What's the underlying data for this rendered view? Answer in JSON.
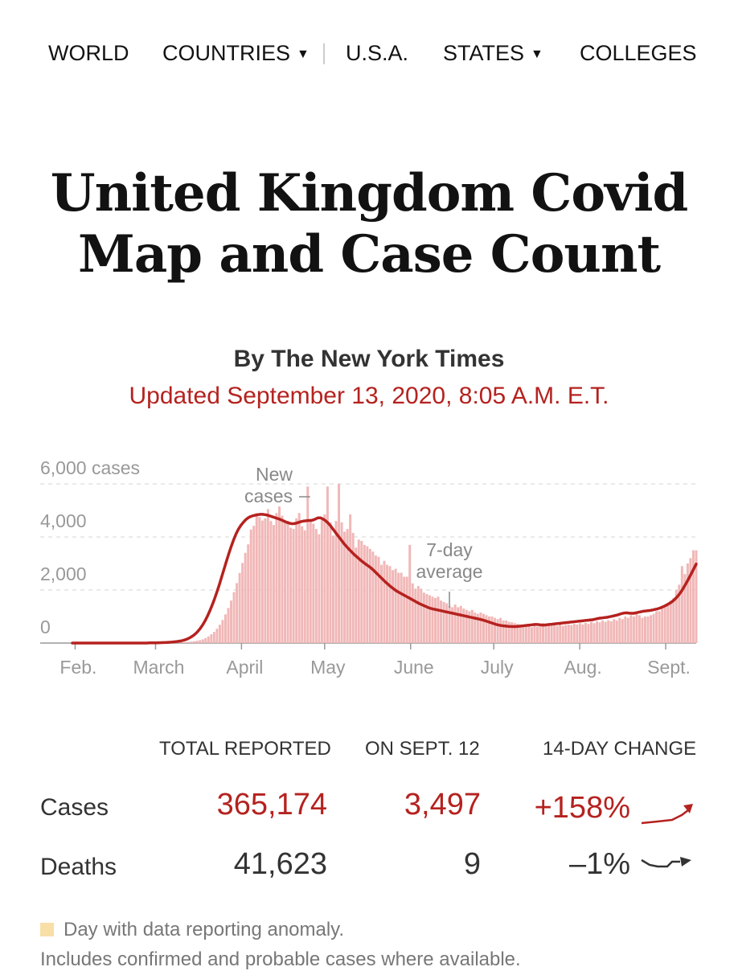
{
  "nav": {
    "items": [
      {
        "label": "WORLD",
        "has_caret": false
      },
      {
        "label": "COUNTRIES",
        "has_caret": true
      },
      {
        "label": "U.S.A.",
        "has_caret": false
      },
      {
        "label": "STATES",
        "has_caret": true
      },
      {
        "label": "COLLEGES",
        "has_caret": false
      }
    ],
    "caret_icon": "caret-down-icon"
  },
  "header": {
    "title": "United Kingdom Covid Map and Case Count",
    "byline": "By The New York Times",
    "updated": "Updated September 13, 2020, 8:05 A.M. E.T."
  },
  "chart_data": {
    "type": "bar",
    "title": "",
    "x_axis": {
      "type": "date",
      "range": [
        "2020-01-31",
        "2020-09-12"
      ],
      "tick_labels": [
        "Feb.",
        "March",
        "April",
        "May",
        "June",
        "July",
        "Aug.",
        "Sept."
      ],
      "tick_dates": [
        "2020-02-01",
        "2020-03-01",
        "2020-04-01",
        "2020-05-01",
        "2020-06-01",
        "2020-07-01",
        "2020-08-01",
        "2020-09-01"
      ]
    },
    "y_axis": {
      "ylim": [
        0,
        6000
      ],
      "tick_labels": [
        "0",
        "2,000",
        "4,000",
        "6,000 cases"
      ],
      "tick_values": [
        0,
        2000,
        4000,
        6000
      ],
      "grid": true
    },
    "annotations": [
      {
        "text_lines": [
          "New",
          "cases"
        ],
        "target": "daily new cases bars",
        "date": "2020-04-24"
      },
      {
        "text_lines": [
          "7-day",
          "average"
        ],
        "target": "7-day average line",
        "date": "2020-06-15"
      }
    ],
    "series": [
      {
        "name": "New cases",
        "kind": "bar",
        "color": "#f1b7b7",
        "dates": [
          "2020-01-31",
          "2020-09-12"
        ],
        "values": [
          0,
          0,
          0,
          0,
          0,
          0,
          0,
          0,
          0,
          0,
          0,
          0,
          0,
          0,
          0,
          0,
          0,
          0,
          0,
          0,
          0,
          0,
          0,
          0,
          0,
          0,
          0,
          0,
          0,
          0,
          0,
          0,
          12,
          12,
          12,
          13,
          15,
          18,
          22,
          28,
          35,
          44,
          55,
          70,
          88,
          110,
          140,
          190,
          250,
          330,
          420,
          540,
          690,
          870,
          1080,
          1320,
          1600,
          1920,
          2260,
          2640,
          3020,
          3400,
          3720,
          4280,
          4420,
          4900,
          4750,
          4620,
          4700,
          5050,
          4600,
          4450,
          4900,
          5150,
          4800,
          4550,
          4600,
          4350,
          4300,
          4700,
          4900,
          4400,
          4250,
          5900,
          4650,
          4500,
          4300,
          4100,
          4650,
          4850,
          5900,
          4550,
          4050,
          4600,
          6000,
          4550,
          4200,
          4300,
          4850,
          4150,
          3600,
          3900,
          3850,
          3700,
          3650,
          3550,
          3450,
          3300,
          3250,
          2950,
          3100,
          2950,
          2900,
          2750,
          2800,
          2650,
          2650,
          2500,
          2500,
          3700,
          2250,
          2050,
          2150,
          2050,
          1900,
          1850,
          1800,
          1750,
          1700,
          1750,
          1600,
          1550,
          1500,
          1400,
          1350,
          1450,
          1350,
          1400,
          1300,
          1250,
          1200,
          1250,
          1150,
          1100,
          1150,
          1100,
          1050,
          1000,
          1000,
          950,
          900,
          950,
          850,
          850,
          800,
          780,
          750,
          720,
          680,
          700,
          650,
          620,
          600,
          650,
          620,
          700,
          750,
          650,
          700,
          700,
          680,
          650,
          720,
          650,
          680,
          700,
          680,
          720,
          700,
          750,
          700,
          760,
          720,
          800,
          750,
          820,
          780,
          850,
          800,
          860,
          820,
          900,
          850,
          950,
          900,
          1000,
          950,
          1050,
          1000,
          1100,
          1050,
          950,
          1000,
          1000,
          1050,
          1100,
          1200,
          1200,
          1300,
          1350,
          1500,
          1600,
          1700,
          2000,
          2200,
          2900,
          2600,
          3000,
          3200,
          3500,
          3497
        ]
      },
      {
        "name": "7-day average",
        "kind": "line",
        "color": "#b5221f",
        "dates": [
          "2020-01-31",
          "2020-09-12"
        ],
        "values": [
          0,
          0,
          0,
          0,
          0,
          0,
          0,
          0,
          0,
          0,
          0,
          0,
          0,
          0,
          0,
          0,
          0,
          0,
          0,
          0,
          0,
          0,
          0,
          0,
          0,
          0,
          0,
          0,
          0,
          0,
          0,
          0,
          5,
          6,
          8,
          10,
          12,
          15,
          18,
          22,
          27,
          33,
          41,
          51,
          64,
          80,
          100,
          128,
          165,
          212,
          270,
          340,
          430,
          540,
          670,
          820,
          1000,
          1200,
          1420,
          1660,
          1920,
          2200,
          2500,
          2800,
          3100,
          3380,
          3650,
          3900,
          4120,
          4300,
          4440,
          4550,
          4650,
          4720,
          4770,
          4800,
          4820,
          4840,
          4850,
          4850,
          4840,
          4820,
          4790,
          4760,
          4730,
          4700,
          4670,
          4630,
          4590,
          4550,
          4520,
          4500,
          4500,
          4520,
          4550,
          4580,
          4600,
          4610,
          4620,
          4620,
          4640,
          4680,
          4720,
          4720,
          4680,
          4620,
          4540,
          4440,
          4320,
          4200,
          4080,
          3960,
          3840,
          3720,
          3620,
          3520,
          3430,
          3340,
          3260,
          3180,
          3100,
          3030,
          2960,
          2900,
          2830,
          2750,
          2660,
          2570,
          2480,
          2390,
          2300,
          2220,
          2140,
          2070,
          2000,
          1940,
          1890,
          1840,
          1790,
          1740,
          1690,
          1640,
          1590,
          1540,
          1490,
          1450,
          1410,
          1370,
          1330,
          1300,
          1280,
          1260,
          1240,
          1220,
          1200,
          1180,
          1160,
          1140,
          1120,
          1100,
          1080,
          1060,
          1040,
          1020,
          1000,
          980,
          960,
          940,
          920,
          900,
          880,
          850,
          820,
          790,
          760,
          730,
          700,
          680,
          660,
          650,
          640,
          630,
          625,
          620,
          620,
          630,
          640,
          650,
          660,
          670,
          680,
          690,
          700,
          700,
          690,
          680,
          680,
          690,
          700,
          710,
          720,
          730,
          740,
          750,
          760,
          770,
          780,
          790,
          800,
          810,
          820,
          830,
          840,
          850,
          860,
          870,
          880,
          900,
          920,
          940,
          950,
          960,
          970,
          990,
          1010,
          1030,
          1050,
          1080,
          1110,
          1130,
          1140,
          1130,
          1120,
          1120,
          1140,
          1160,
          1180,
          1200,
          1210,
          1220,
          1230,
          1250,
          1270,
          1290,
          1320,
          1360,
          1400,
          1450,
          1500,
          1560,
          1640,
          1730,
          1840,
          1970,
          2120,
          2280,
          2450,
          2620,
          2800,
          2980
        ]
      }
    ]
  },
  "stats": {
    "headers": [
      "TOTAL REPORTED",
      "ON SEPT. 12",
      "14-DAY CHANGE"
    ],
    "rows": [
      {
        "label": "Cases",
        "total": "365,174",
        "on_day": "3,497",
        "change": "+158%",
        "color": "#b5221f"
      },
      {
        "label": "Deaths",
        "total": "41,623",
        "on_day": "9",
        "change": "–1%",
        "color": "#333333"
      }
    ]
  },
  "footer": {
    "legend_text": "Day with data reporting anomaly.",
    "legend_swatch_color": "#f8dfa7",
    "note": "Includes confirmed and probable cases where available."
  }
}
